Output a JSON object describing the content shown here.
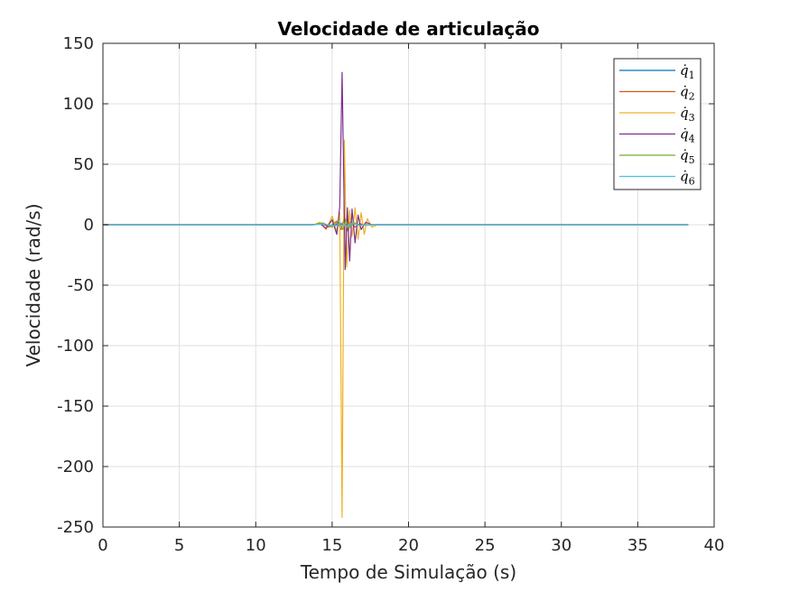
{
  "chart_data": {
    "type": "line",
    "title": "Velocidade de articulação",
    "xlabel": "Tempo de Simulação (s)",
    "ylabel": "Velocidade (rad/s)",
    "xlim": [
      0,
      40
    ],
    "ylim": [
      -250,
      150
    ],
    "x_ticks": [
      0,
      5,
      10,
      15,
      20,
      25,
      30,
      35,
      40
    ],
    "y_ticks": [
      -250,
      -200,
      -150,
      -100,
      -50,
      0,
      50,
      100,
      150
    ],
    "x_tick_labels": [
      "0",
      "5",
      "10",
      "15",
      "20",
      "25",
      "30",
      "35",
      "40"
    ],
    "y_tick_labels": [
      "-250",
      "-200",
      "-150",
      "-100",
      "-50",
      "0",
      "50",
      "100",
      "150"
    ],
    "grid": true,
    "legend_position": "top-right",
    "series": [
      {
        "name": "q̇1",
        "legend_base": "q̇",
        "legend_sub": "1",
        "color": "#0072BD",
        "x": [
          0,
          13.5,
          14.2,
          15.0,
          15.5,
          16.0,
          16.5,
          17.0,
          18.0,
          38.3
        ],
        "y": [
          0,
          0,
          0.5,
          -0.5,
          1,
          -1,
          0.5,
          -0.3,
          0,
          0
        ]
      },
      {
        "name": "q̇2",
        "legend_base": "q̇",
        "legend_sub": "2",
        "color": "#D95319",
        "x": [
          0,
          13.8,
          14.3,
          14.8,
          15.3,
          15.6,
          15.8,
          16.0,
          16.2,
          16.5,
          16.8,
          17.2,
          17.6,
          38.3
        ],
        "y": [
          0,
          0,
          1,
          -2,
          3,
          -4,
          6,
          -5,
          3,
          -2,
          1,
          -0.5,
          0,
          0
        ]
      },
      {
        "name": "q̇3",
        "legend_base": "q̇",
        "legend_sub": "3",
        "color": "#EDB120",
        "x": [
          0,
          13.8,
          14.2,
          14.6,
          15.0,
          15.3,
          15.5,
          15.65,
          15.8,
          15.95,
          16.15,
          16.3,
          16.5,
          16.7,
          16.9,
          17.1,
          17.3,
          17.6,
          18.0,
          38.3
        ],
        "y": [
          0,
          0,
          2,
          -4,
          7,
          -6,
          10,
          -242,
          70,
          -35,
          12,
          -10,
          14,
          -12,
          10,
          -8,
          5,
          -2,
          0,
          0
        ]
      },
      {
        "name": "q̇4",
        "legend_base": "q̇",
        "legend_sub": "4",
        "color": "#7E2F8E",
        "x": [
          0,
          13.8,
          14.2,
          14.6,
          15.0,
          15.3,
          15.5,
          15.65,
          15.85,
          16.0,
          16.15,
          16.3,
          16.5,
          16.7,
          16.9,
          17.2,
          17.6,
          38.3
        ],
        "y": [
          0,
          0,
          1,
          -3,
          4,
          -8,
          15,
          126,
          -37,
          14,
          -30,
          13,
          -15,
          8,
          -4,
          2,
          0,
          0
        ]
      },
      {
        "name": "q̇5",
        "legend_base": "q̇",
        "legend_sub": "5",
        "color": "#77AC30",
        "x": [
          0,
          13.8,
          14.4,
          15.0,
          15.4,
          15.7,
          15.9,
          16.1,
          16.4,
          16.8,
          17.3,
          38.3
        ],
        "y": [
          0,
          0,
          1.5,
          -2,
          3,
          -4,
          4,
          -3,
          2,
          -1,
          0,
          0
        ]
      },
      {
        "name": "q̇6",
        "legend_base": "q̇",
        "legend_sub": "6",
        "color": "#4DBEEE",
        "x": [
          0,
          13.8,
          14.5,
          15.2,
          15.6,
          15.9,
          16.3,
          16.8,
          17.4,
          38.3
        ],
        "y": [
          0,
          0,
          0.5,
          -1,
          1.5,
          -1.5,
          1,
          -0.5,
          0,
          0
        ]
      }
    ]
  }
}
